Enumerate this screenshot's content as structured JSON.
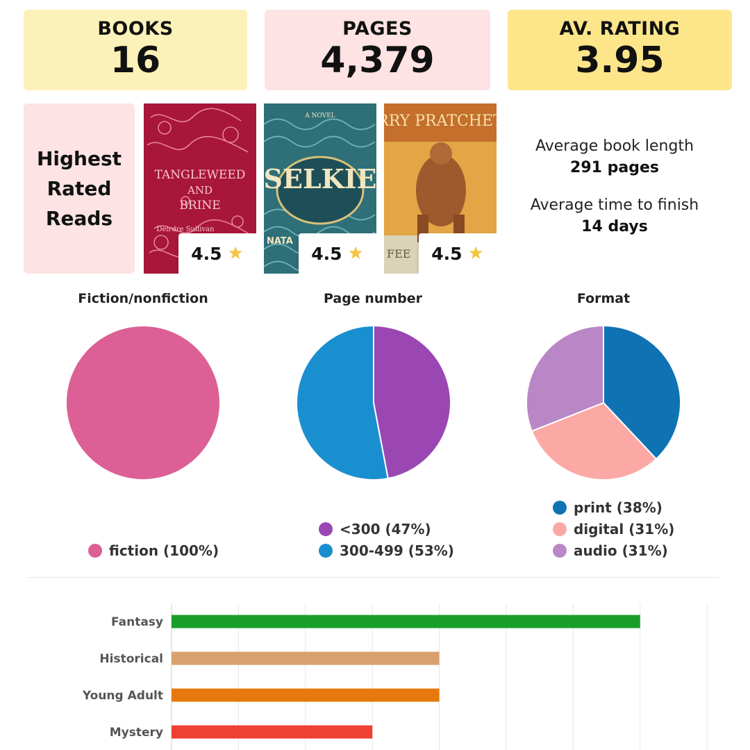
{
  "stats": {
    "books": {
      "label": "BOOKS",
      "value": "16",
      "color": "#fcf1b8"
    },
    "pages": {
      "label": "PAGES",
      "value": "4,379",
      "color": "#fde3e3"
    },
    "rating": {
      "label": "AV. RATING",
      "value": "3.95",
      "color": "#fde68a"
    }
  },
  "highest_rated": {
    "title_lines": [
      "Highest",
      "Rated",
      "Reads"
    ],
    "bg": "#fde3e3",
    "books": [
      {
        "cover_text": [
          "TANGLEWEED",
          "AND",
          "BRINE"
        ],
        "cover_author": "Deirdre Sullivan",
        "rating": "4.5"
      },
      {
        "cover_text": [
          "SELKIE"
        ],
        "cover_tagline": "A NOVEL",
        "cover_author": "NATA",
        "rating": "4.5"
      },
      {
        "cover_text": [
          "RRY PRATCHET"
        ],
        "cover_author": "FEE",
        "rating": "4.5"
      }
    ]
  },
  "averages": {
    "length_label": "Average book length",
    "length_value": "291 pages",
    "time_label": "Average time to finish",
    "time_value": "14 days"
  },
  "chart_data": [
    {
      "type": "pie",
      "title": "Fiction/nonfiction",
      "slices": [
        {
          "label": "fiction",
          "value": 100,
          "legend": "fiction (100%)",
          "color": "#dc5f96"
        }
      ]
    },
    {
      "type": "pie",
      "title": "Page number",
      "slices": [
        {
          "label": "<300",
          "value": 47,
          "legend": "<300 (47%)",
          "color": "#9a47b4"
        },
        {
          "label": "300-499",
          "value": 53,
          "legend": "300-499 (53%)",
          "color": "#1a8fd0"
        }
      ]
    },
    {
      "type": "pie",
      "title": "Format",
      "slices": [
        {
          "label": "print",
          "value": 38,
          "legend": "print (38%)",
          "color": "#0f73b3"
        },
        {
          "label": "digital",
          "value": 31,
          "legend": "digital (31%)",
          "color": "#fca9a6"
        },
        {
          "label": "audio",
          "value": 31,
          "legend": "audio (31%)",
          "color": "#b987c5"
        }
      ]
    },
    {
      "type": "bar",
      "orientation": "horizontal",
      "categories": [
        "Fantasy",
        "Historical",
        "Young Adult",
        "Mystery"
      ],
      "values": [
        7,
        4,
        4,
        3
      ],
      "colors": [
        "#1a9e2a",
        "#d9a06f",
        "#e6780e",
        "#ef4034"
      ],
      "xlim": [
        0,
        8
      ],
      "grid": true
    }
  ]
}
